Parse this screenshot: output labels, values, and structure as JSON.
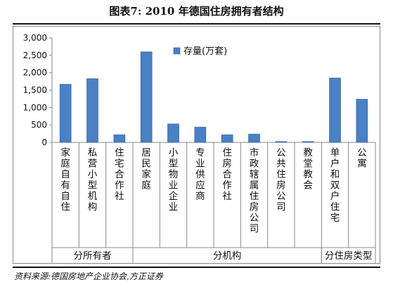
{
  "figure_title": "图表7:   2010 年德国住房拥有者结构",
  "source": "资料来源:德国房地产企业协会,方正证券",
  "colors": {
    "bar": "#4a80c4",
    "bar_stroke": "#2f5e9b",
    "axis": "#888888",
    "text": "#111111"
  },
  "chart_data": {
    "type": "bar",
    "title": "",
    "xlabel": "",
    "ylabel": "",
    "ylim": [
      0,
      3000
    ],
    "yticks": [
      "0",
      "500",
      "1,000",
      "1,500",
      "2,000",
      "2,500",
      "3,000"
    ],
    "grid": false,
    "legend_position": "top-center",
    "categories": [
      "家庭自有自住",
      "私营小型机构",
      "住宅合作社",
      "居民家庭",
      "小型物业企业",
      "专业供应商",
      "住房合作社",
      "市政辖属住房公司",
      "公共住房公司",
      "教堂教会",
      "单户和双户住宅",
      "公寓"
    ],
    "series": [
      {
        "name": "存量(万套)",
        "values": [
          1670,
          1830,
          220,
          2600,
          530,
          440,
          220,
          240,
          25,
          25,
          1850,
          1240
        ]
      }
    ],
    "groups": [
      {
        "label": "分所有者",
        "start": 0,
        "end": 2
      },
      {
        "label": "分机构",
        "start": 3,
        "end": 9
      },
      {
        "label": "分住房类型",
        "start": 10,
        "end": 11
      }
    ]
  }
}
